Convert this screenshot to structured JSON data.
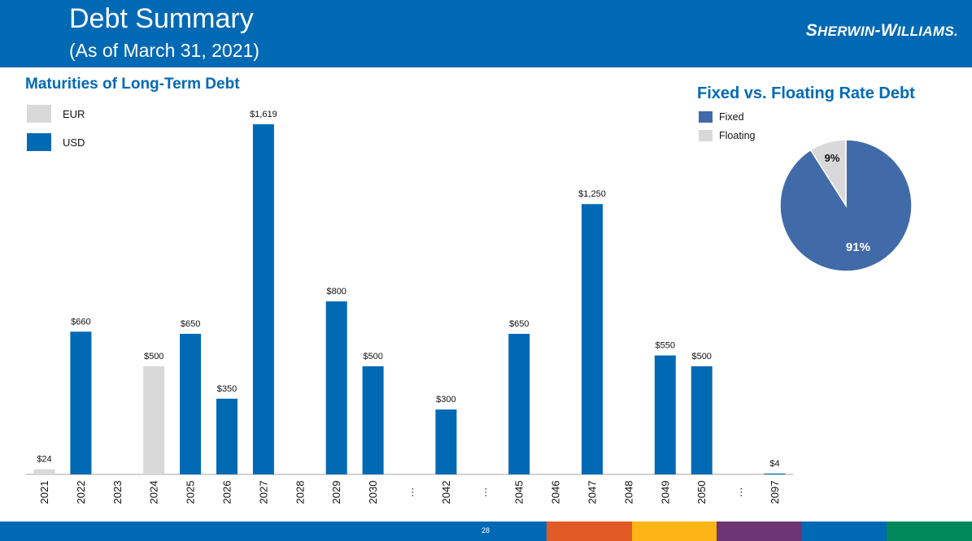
{
  "header": {
    "title": "Debt Summary",
    "subtitle": "(As of March 31, 2021)",
    "logo_text": "Sherwin-Williams.",
    "logo_parts": [
      "S",
      "HERWIN",
      "-W",
      "ILLIAMS",
      "."
    ]
  },
  "colors": {
    "header_bg": "#0069b4",
    "usd": "#0069b4",
    "eur": "#d9d9d9",
    "fixed": "#416aa9",
    "floating": "#d9d9d9",
    "footer_segments": [
      "#0069b4",
      "#e25a26",
      "#fdb515",
      "#6e3574",
      "#0069b4",
      "#00885a"
    ]
  },
  "page_number": "28",
  "chart_data": [
    {
      "type": "bar",
      "title": "Maturities of Long-Term Debt",
      "legend": [
        {
          "name": "EUR",
          "color": "#d9d9d9"
        },
        {
          "name": "USD",
          "color": "#0069b4"
        }
      ],
      "categories": [
        "2021",
        "2022",
        "2023",
        "2024",
        "2025",
        "2026",
        "2027",
        "2028",
        "2029",
        "2030",
        "…",
        "2042",
        "…",
        "2045",
        "2046",
        "2047",
        "2048",
        "2049",
        "2050",
        "…",
        "2097"
      ],
      "bars": [
        {
          "category": "2021",
          "value": 24,
          "label": "$24",
          "currency": "EUR"
        },
        {
          "category": "2022",
          "value": 660,
          "label": "$660",
          "currency": "USD"
        },
        {
          "category": "2024",
          "value": 500,
          "label": "$500",
          "currency": "EUR"
        },
        {
          "category": "2025",
          "value": 650,
          "label": "$650",
          "currency": "USD"
        },
        {
          "category": "2026",
          "value": 350,
          "label": "$350",
          "currency": "USD"
        },
        {
          "category": "2027",
          "value": 1619,
          "label": "$1,619",
          "currency": "USD"
        },
        {
          "category": "2029",
          "value": 800,
          "label": "$800",
          "currency": "USD"
        },
        {
          "category": "2030",
          "value": 500,
          "label": "$500",
          "currency": "USD"
        },
        {
          "category": "2042",
          "value": 300,
          "label": "$300",
          "currency": "USD"
        },
        {
          "category": "2045",
          "value": 650,
          "label": "$650",
          "currency": "USD"
        },
        {
          "category": "2047",
          "value": 1250,
          "label": "$1,250",
          "currency": "USD"
        },
        {
          "category": "2049",
          "value": 550,
          "label": "$550",
          "currency": "USD"
        },
        {
          "category": "2050",
          "value": 500,
          "label": "$500",
          "currency": "USD"
        },
        {
          "category": "2097",
          "value": 4,
          "label": "$4",
          "currency": "USD"
        }
      ],
      "ylim": [
        0,
        1619
      ]
    },
    {
      "type": "pie",
      "title": "Fixed vs. Floating Rate Debt",
      "legend": [
        {
          "name": "Fixed",
          "color": "#416aa9"
        },
        {
          "name": "Floating",
          "color": "#d9d9d9"
        }
      ],
      "slices": [
        {
          "name": "Fixed",
          "value": 91,
          "label": "91%",
          "color": "#416aa9"
        },
        {
          "name": "Floating",
          "value": 9,
          "label": "9%",
          "color": "#d9d9d9"
        }
      ]
    }
  ]
}
